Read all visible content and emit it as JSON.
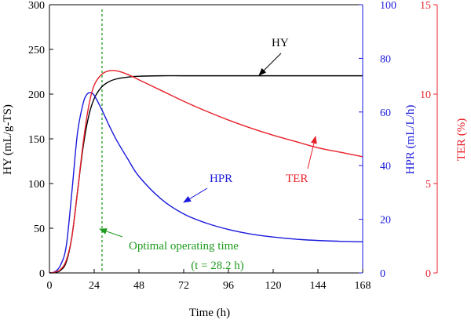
{
  "chart_data": {
    "type": "line",
    "x_axis": {
      "label": "Time (h)",
      "min": 0,
      "max": 168,
      "ticks": [
        0,
        24,
        48,
        72,
        96,
        120,
        144,
        168
      ]
    },
    "y_axes": {
      "left": {
        "label": "HY (mL/g-TS)",
        "min": 0,
        "max": 300,
        "ticks": [
          0,
          50,
          100,
          150,
          200,
          250,
          300
        ],
        "color": "#000000"
      },
      "right_inner": {
        "label": "HPR (mL/L/h)",
        "min": 0,
        "max": 100,
        "ticks": [
          0,
          20,
          40,
          60,
          80,
          100
        ],
        "color": "#1a1adc"
      },
      "right_outer": {
        "label": "TER (%)",
        "min": 0,
        "max": 15,
        "ticks": [
          0,
          5,
          10,
          15
        ],
        "color": "#e8202a"
      }
    },
    "series": [
      {
        "name": "HY",
        "axis": "left",
        "color": "#000000",
        "points": [
          [
            0,
            0
          ],
          [
            3,
            0.5
          ],
          [
            6,
            3
          ],
          [
            9,
            12
          ],
          [
            12,
            40
          ],
          [
            15,
            90
          ],
          [
            18,
            140
          ],
          [
            21,
            175
          ],
          [
            24,
            195
          ],
          [
            28,
            208
          ],
          [
            32,
            214
          ],
          [
            36,
            217
          ],
          [
            42,
            219
          ],
          [
            48,
            220
          ],
          [
            60,
            220.5
          ],
          [
            72,
            220.5
          ],
          [
            96,
            220.5
          ],
          [
            120,
            220.5
          ],
          [
            144,
            220.5
          ],
          [
            168,
            220.5
          ]
        ]
      },
      {
        "name": "HPR",
        "axis": "right_inner",
        "color": "#1a1adc",
        "points": [
          [
            0,
            0
          ],
          [
            3,
            0.5
          ],
          [
            6,
            3
          ],
          [
            9,
            10
          ],
          [
            12,
            30
          ],
          [
            15,
            52
          ],
          [
            18,
            63
          ],
          [
            20,
            66.5
          ],
          [
            22,
            67.2
          ],
          [
            24,
            66.2
          ],
          [
            28,
            61
          ],
          [
            32,
            55
          ],
          [
            36,
            49.5
          ],
          [
            42,
            42.5
          ],
          [
            48,
            36
          ],
          [
            60,
            27.5
          ],
          [
            72,
            22
          ],
          [
            84,
            18.6
          ],
          [
            96,
            16.2
          ],
          [
            108,
            14.5
          ],
          [
            120,
            13.4
          ],
          [
            132,
            12.6
          ],
          [
            144,
            12.1
          ],
          [
            156,
            11.8
          ],
          [
            168,
            11.6
          ]
        ]
      },
      {
        "name": "TER",
        "axis": "right_outer",
        "color": "#e8202a",
        "points": [
          [
            0,
            0
          ],
          [
            3,
            0.05
          ],
          [
            6,
            0.2
          ],
          [
            9,
            0.7
          ],
          [
            12,
            2
          ],
          [
            15,
            4.5
          ],
          [
            18,
            7.2
          ],
          [
            21,
            9.3
          ],
          [
            24,
            10.5
          ],
          [
            28,
            11.1
          ],
          [
            32,
            11.3
          ],
          [
            36,
            11.3
          ],
          [
            42,
            11.1
          ],
          [
            48,
            10.8
          ],
          [
            60,
            10.2
          ],
          [
            72,
            9.6
          ],
          [
            84,
            9.05
          ],
          [
            96,
            8.55
          ],
          [
            108,
            8.1
          ],
          [
            120,
            7.7
          ],
          [
            132,
            7.35
          ],
          [
            144,
            7.0
          ],
          [
            156,
            6.75
          ],
          [
            168,
            6.5
          ]
        ]
      }
    ],
    "reference_line": {
      "x": 28.2,
      "color": "#1f9b1f",
      "style": "dashed"
    },
    "annotations": {
      "hy": {
        "text": "HY"
      },
      "hpr": {
        "text": "HPR"
      },
      "ter": {
        "text": "TER"
      },
      "opt_line1": {
        "text": "Optimal operating time"
      },
      "opt_line2": {
        "text": "(t = 28.2 h)"
      }
    }
  }
}
